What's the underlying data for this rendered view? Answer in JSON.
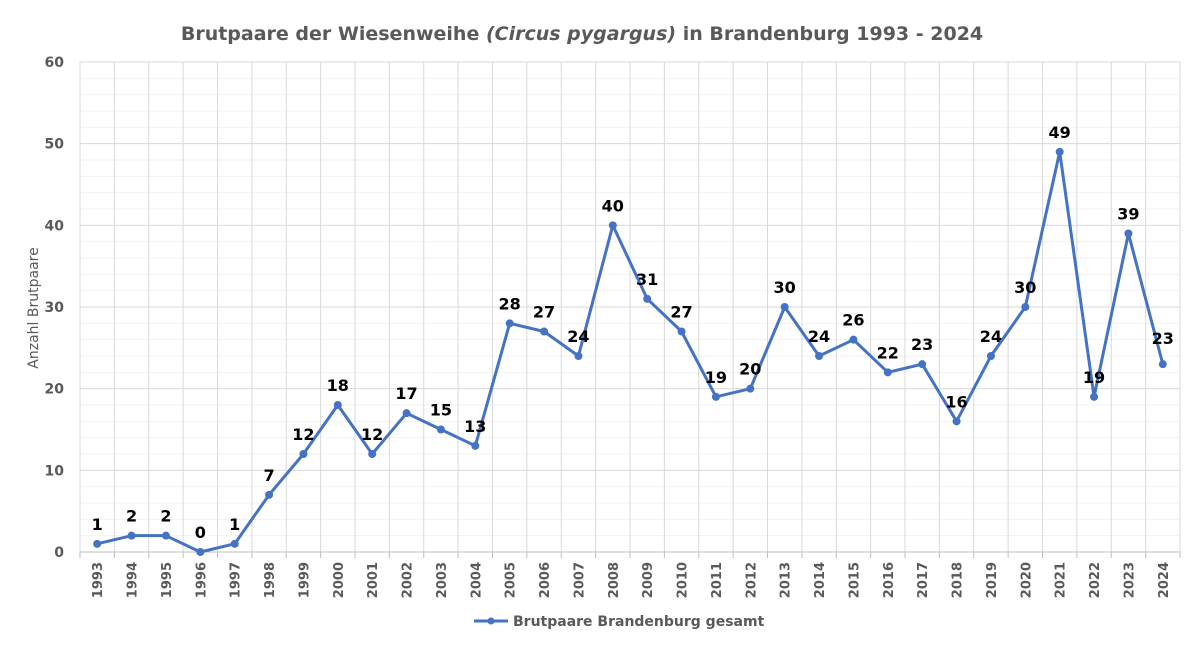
{
  "chart_data": {
    "type": "line",
    "title_parts": [
      "Brutpaare der Wiesenweihe ",
      "(Circus pygargus)",
      " in Brandenburg 1993 - 2024"
    ],
    "ylabel": "Anzahl Brutpaare",
    "xlabel": "",
    "ylim": [
      0,
      60
    ],
    "yticks": [
      0,
      10,
      20,
      30,
      40,
      50,
      60
    ],
    "grid": true,
    "legend_position": "bottom",
    "categories": [
      "1993",
      "1994",
      "1995",
      "1996",
      "1997",
      "1998",
      "1999",
      "2000",
      "2001",
      "2002",
      "2003",
      "2004",
      "2005",
      "2006",
      "2007",
      "2008",
      "2009",
      "2010",
      "2011",
      "2012",
      "2013",
      "2014",
      "2015",
      "2016",
      "2017",
      "2018",
      "2019",
      "2020",
      "2021",
      "2022",
      "2023",
      "2024"
    ],
    "series": [
      {
        "name": "Brutpaare Brandenburg gesamt",
        "color": "#4472C4",
        "values": [
          1,
          2,
          2,
          0,
          1,
          7,
          12,
          18,
          12,
          17,
          15,
          13,
          28,
          27,
          24,
          40,
          31,
          27,
          19,
          20,
          30,
          24,
          26,
          22,
          23,
          16,
          24,
          30,
          49,
          19,
          39,
          23
        ]
      }
    ]
  }
}
